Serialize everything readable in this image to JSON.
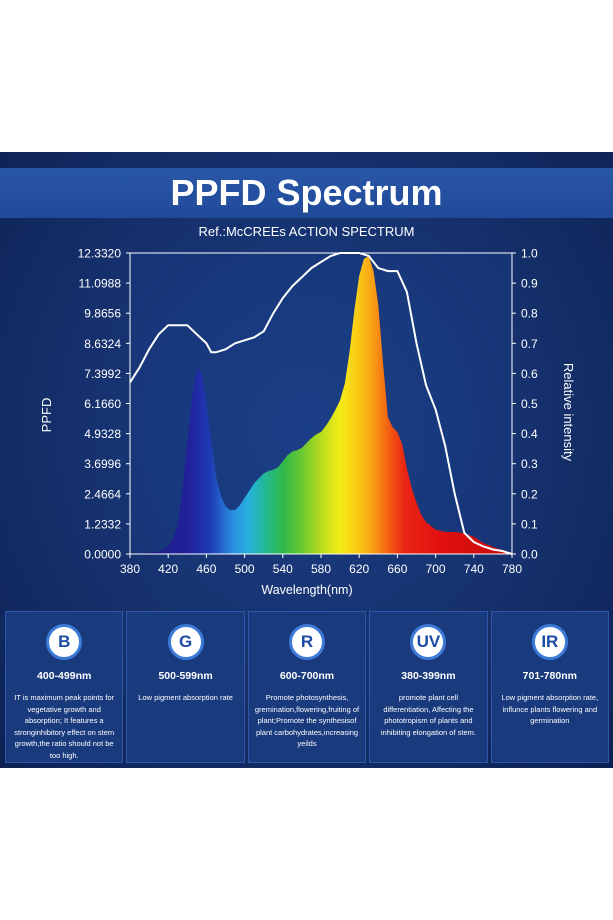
{
  "title": "PPFD Spectrum",
  "reference": "Ref.:McCREEs ACTION SPECTRUM",
  "chart_data": {
    "type": "area",
    "xlabel": "Wavelength(nm)",
    "ylabel_left": "PPFD",
    "ylabel_right": "Relative intensity",
    "xlim": [
      380,
      780
    ],
    "ylim_left": [
      0,
      12.332
    ],
    "ylim_right": [
      0,
      1.0
    ],
    "x_ticks": [
      "380",
      "420",
      "460",
      "500",
      "540",
      "580",
      "620",
      "660",
      "700",
      "740",
      "780"
    ],
    "y_ticks_left": [
      "0.0000",
      "1.2332",
      "2.4664",
      "3.6996",
      "4.9328",
      "6.1660",
      "7.3992",
      "8.6324",
      "9.8656",
      "11.0988",
      "12.3320"
    ],
    "y_ticks_right": [
      "0.0",
      "0.1",
      "0.2",
      "0.3",
      "0.4",
      "0.5",
      "0.6",
      "0.7",
      "0.8",
      "0.9",
      "1.0"
    ],
    "series": [
      {
        "type": "area",
        "x": [
          380,
          400,
          410,
          420,
          425,
          430,
          435,
          440,
          445,
          450,
          455,
          460,
          465,
          470,
          475,
          480,
          485,
          490,
          495,
          500,
          505,
          510,
          515,
          520,
          525,
          530,
          535,
          540,
          545,
          550,
          555,
          560,
          565,
          570,
          575,
          580,
          585,
          590,
          595,
          600,
          605,
          610,
          615,
          620,
          625,
          630,
          635,
          640,
          645,
          650,
          655,
          660,
          665,
          670,
          675,
          680,
          685,
          690,
          700,
          710,
          720,
          730,
          740,
          750,
          760,
          770,
          780
        ],
        "values": [
          0.0,
          0.05,
          0.1,
          0.3,
          0.6,
          1.2,
          2.6,
          4.6,
          6.4,
          7.6,
          7.4,
          6.2,
          4.6,
          3.2,
          2.4,
          1.95,
          1.8,
          1.8,
          2.0,
          2.3,
          2.6,
          2.9,
          3.1,
          3.3,
          3.4,
          3.45,
          3.55,
          3.8,
          4.05,
          4.2,
          4.25,
          4.35,
          4.55,
          4.75,
          4.9,
          5.0,
          5.25,
          5.55,
          5.9,
          6.3,
          7.0,
          8.3,
          10.0,
          11.4,
          12.1,
          12.2,
          11.6,
          10.2,
          7.8,
          5.6,
          5.2,
          5.0,
          4.5,
          3.5,
          2.7,
          2.1,
          1.6,
          1.3,
          1.0,
          0.9,
          0.9,
          0.85,
          0.7,
          0.45,
          0.3,
          0.15,
          0.05
        ],
        "axis": "left"
      },
      {
        "type": "line",
        "x": [
          380,
          390,
          400,
          410,
          420,
          430,
          440,
          450,
          460,
          465,
          470,
          480,
          490,
          500,
          510,
          520,
          530,
          540,
          550,
          560,
          570,
          580,
          590,
          600,
          610,
          620,
          630,
          640,
          650,
          660,
          670,
          680,
          690,
          700,
          710,
          720,
          730,
          740,
          750,
          760,
          770,
          780
        ],
        "values": [
          0.57,
          0.62,
          0.68,
          0.73,
          0.76,
          0.76,
          0.76,
          0.73,
          0.7,
          0.67,
          0.67,
          0.68,
          0.7,
          0.71,
          0.72,
          0.74,
          0.8,
          0.85,
          0.89,
          0.92,
          0.95,
          0.97,
          0.99,
          1.0,
          1.0,
          1.0,
          0.99,
          0.95,
          0.94,
          0.94,
          0.87,
          0.7,
          0.56,
          0.48,
          0.36,
          0.2,
          0.07,
          0.04,
          0.025,
          0.015,
          0.01,
          0.0
        ],
        "axis": "right"
      }
    ]
  },
  "cards": [
    {
      "badge": "B",
      "range": "400-499nm",
      "desc": "IT is maximum peak points for vegetative growth and absorption; It features a stronginhibitory effect on stem growth,the ratio should not be too high."
    },
    {
      "badge": "G",
      "range": "500-599nm",
      "desc": "Low pigment absorption rate"
    },
    {
      "badge": "R",
      "range": "600-700nm",
      "desc": "Promote photosynthesis, gremination,flowering,fruiting of plant;Promote the synthesisof plant carbohydrates,increasing yeilds"
    },
    {
      "badge": "UV",
      "range": "380-399nm",
      "desc": "promote plant cell differentiation, Affecting the phototropism of plants and inhibiting elongation of stem."
    },
    {
      "badge": "IR",
      "range": "701-780nm",
      "desc": "Low pigment absorption rate, influnce plants flowering and germination"
    }
  ]
}
